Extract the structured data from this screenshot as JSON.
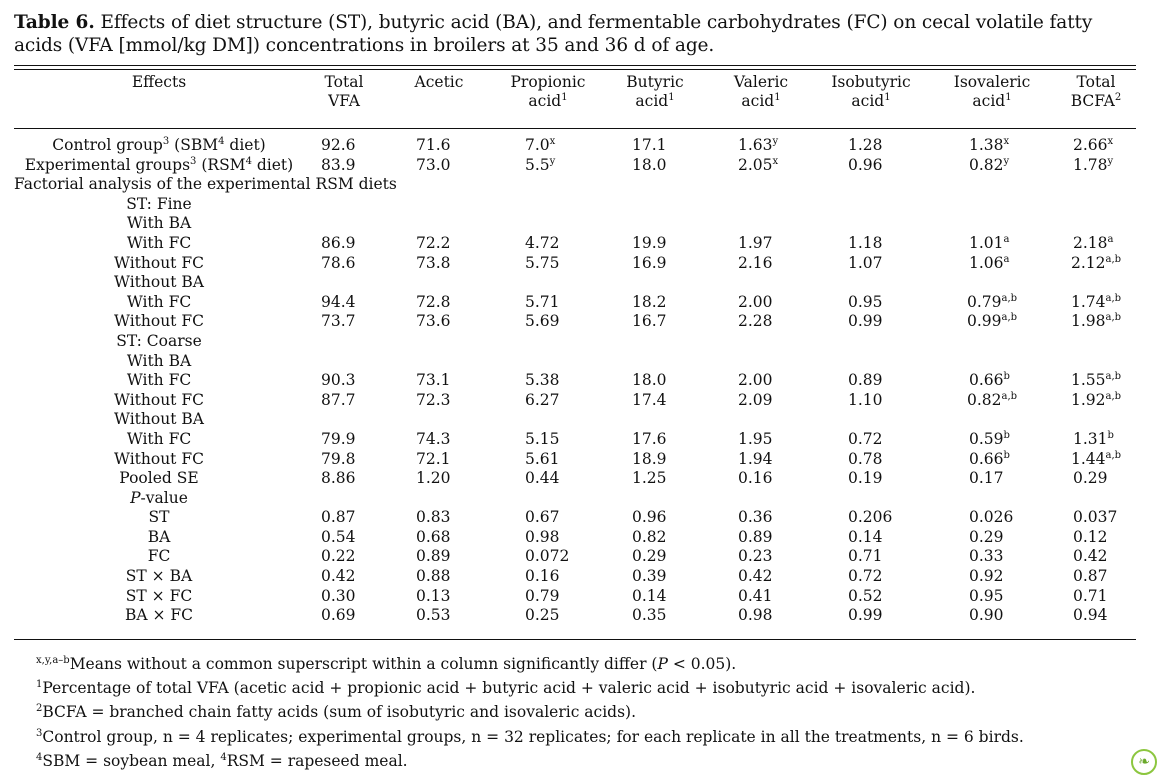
{
  "caption": {
    "label": "Table 6.",
    "text": " Effects of diet structure (ST), butyric acid (BA), and fermentable carbohydrates (FC) on cecal volatile fatty acids (VFA [mmol/kg DM]) concentrations in broilers at 35 and 36 d of age."
  },
  "headers": [
    {
      "line1": "Effects",
      "line2": "",
      "sup": ""
    },
    {
      "line1": "Total",
      "line2": "VFA",
      "sup": ""
    },
    {
      "line1": "Acetic",
      "line2": "",
      "sup": ""
    },
    {
      "line1": "Propionic",
      "line2": "acid",
      "sup": "1"
    },
    {
      "line1": "Butyric",
      "line2": "acid",
      "sup": "1"
    },
    {
      "line1": "Valeric",
      "line2": "acid",
      "sup": "1"
    },
    {
      "line1": "Isobutyric",
      "line2": "acid",
      "sup": "1"
    },
    {
      "line1": "Isovaleric",
      "line2": "acid",
      "sup": "1"
    },
    {
      "line1": "Total",
      "line2": "BCFA",
      "sup": "2"
    }
  ],
  "rows": [
    {
      "label": "Control group",
      "label_sup": "3",
      "label_rest": " (SBM",
      "label_sup2": "4",
      "label_end": " diet)",
      "vals": [
        "92.6",
        "71.6",
        "7.0",
        "17.1",
        "1.63",
        "1.28",
        "1.38",
        "2.66"
      ],
      "sups": [
        "",
        "",
        "x",
        "",
        "y",
        "",
        "x",
        "x"
      ]
    },
    {
      "label": "Experimental groups",
      "label_sup": "3",
      "label_rest": " (RSM",
      "label_sup2": "4",
      "label_end": " diet)",
      "vals": [
        "83.9",
        "73.0",
        "5.5",
        "18.0",
        "2.05",
        "0.96",
        "0.82",
        "1.78"
      ],
      "sups": [
        "",
        "",
        "y",
        "",
        "x",
        "",
        "y",
        "y"
      ]
    },
    {
      "label": "Factorial analysis of the experimental RSM diets",
      "align": "left",
      "vals": []
    },
    {
      "label": "ST: Fine",
      "vals": []
    },
    {
      "label": "With BA",
      "vals": []
    },
    {
      "label": "With FC",
      "vals": [
        "86.9",
        "72.2",
        "4.72",
        "19.9",
        "1.97",
        "1.18",
        "1.01",
        "2.18"
      ],
      "sups": [
        "",
        "",
        "",
        "",
        "",
        "",
        "a",
        "a"
      ]
    },
    {
      "label": "Without FC",
      "vals": [
        "78.6",
        "73.8",
        "5.75",
        "16.9",
        "2.16",
        "1.07",
        "1.06",
        "2.12"
      ],
      "sups": [
        "",
        "",
        "",
        "",
        "",
        "",
        "a",
        "a,b"
      ]
    },
    {
      "label": "Without BA",
      "vals": []
    },
    {
      "label": "With FC",
      "vals": [
        "94.4",
        "72.8",
        "5.71",
        "18.2",
        "2.00",
        "0.95",
        "0.79",
        "1.74"
      ],
      "sups": [
        "",
        "",
        "",
        "",
        "",
        "",
        "a,b",
        "a,b"
      ]
    },
    {
      "label": "Without FC",
      "vals": [
        "73.7",
        "73.6",
        "5.69",
        "16.7",
        "2.28",
        "0.99",
        "0.99",
        "1.98"
      ],
      "sups": [
        "",
        "",
        "",
        "",
        "",
        "",
        "a,b",
        "a,b"
      ]
    },
    {
      "label": "ST: Coarse",
      "vals": []
    },
    {
      "label": "With BA",
      "vals": []
    },
    {
      "label": "With FC",
      "vals": [
        "90.3",
        "73.1",
        "5.38",
        "18.0",
        "2.00",
        "0.89",
        "0.66",
        "1.55"
      ],
      "sups": [
        "",
        "",
        "",
        "",
        "",
        "",
        "b",
        "a,b"
      ]
    },
    {
      "label": "Without FC",
      "vals": [
        "87.7",
        "72.3",
        "6.27",
        "17.4",
        "2.09",
        "1.10",
        "0.82",
        "1.92"
      ],
      "sups": [
        "",
        "",
        "",
        "",
        "",
        "",
        "a,b",
        "a,b"
      ]
    },
    {
      "label": "Without BA",
      "vals": []
    },
    {
      "label": "With FC",
      "vals": [
        "79.9",
        "74.3",
        "5.15",
        "17.6",
        "1.95",
        "0.72",
        "0.59",
        "1.31"
      ],
      "sups": [
        "",
        "",
        "",
        "",
        "",
        "",
        "b",
        "b"
      ]
    },
    {
      "label": "Without FC",
      "vals": [
        "79.8",
        "72.1",
        "5.61",
        "18.9",
        "1.94",
        "0.78",
        "0.66",
        "1.44"
      ],
      "sups": [
        "",
        "",
        "",
        "",
        "",
        "",
        "b",
        "a,b"
      ]
    },
    {
      "label": "Pooled SE",
      "vals": [
        "8.86",
        "1.20",
        "0.44",
        "1.25",
        "0.16",
        "0.19",
        "0.17",
        "0.29"
      ],
      "sups": [
        "",
        "",
        "",
        "",
        "",
        "",
        "",
        ""
      ]
    },
    {
      "label": "P-value",
      "italic_p": true,
      "vals": []
    },
    {
      "label": "ST",
      "vals": [
        "0.87",
        "0.83",
        "0.67",
        "0.96",
        "0.36",
        "0.206",
        "0.026",
        "0.037"
      ],
      "sups": [
        "",
        "",
        "",
        "",
        "",
        "",
        "",
        ""
      ]
    },
    {
      "label": "BA",
      "vals": [
        "0.54",
        "0.68",
        "0.98",
        "0.82",
        "0.89",
        "0.14",
        "0.29",
        "0.12"
      ],
      "sups": [
        "",
        "",
        "",
        "",
        "",
        "",
        "",
        ""
      ]
    },
    {
      "label": "FC",
      "vals": [
        "0.22",
        "0.89",
        "0.072",
        "0.29",
        "0.23",
        "0.71",
        "0.33",
        "0.42"
      ],
      "sups": [
        "",
        "",
        "",
        "",
        "",
        "",
        "",
        ""
      ]
    },
    {
      "label": "ST × BA",
      "vals": [
        "0.42",
        "0.88",
        "0.16",
        "0.39",
        "0.42",
        "0.72",
        "0.92",
        "0.87"
      ],
      "sups": [
        "",
        "",
        "",
        "",
        "",
        "",
        "",
        ""
      ]
    },
    {
      "label": "ST × FC",
      "vals": [
        "0.30",
        "0.13",
        "0.79",
        "0.14",
        "0.41",
        "0.52",
        "0.95",
        "0.71"
      ],
      "sups": [
        "",
        "",
        "",
        "",
        "",
        "",
        "",
        ""
      ]
    },
    {
      "label": "BA × FC",
      "vals": [
        "0.69",
        "0.53",
        "0.25",
        "0.35",
        "0.98",
        "0.99",
        "0.90",
        "0.94"
      ],
      "sups": [
        "",
        "",
        "",
        "",
        "",
        "",
        "",
        ""
      ]
    }
  ],
  "notes": [
    {
      "sup": "x,y,a–b",
      "text": "Means without a common superscript within a column significantly differ (",
      "italic": "P",
      "text2": " < 0.05)."
    },
    {
      "sup": "1",
      "text": "Percentage of total VFA (acetic acid + propionic acid + butyric acid + valeric acid + isobutyric acid + isovaleric acid).",
      "italic": "",
      "text2": ""
    },
    {
      "sup": "2",
      "text": "BCFA = branched chain fatty acids (sum of isobutyric and isovaleric acids).",
      "italic": "",
      "text2": ""
    },
    {
      "sup": "3",
      "text": "Control group, n = 4 replicates; experimental groups, n = 32 replicates; for each replicate in all the treatments, n = 6 birds.",
      "italic": "",
      "text2": ""
    },
    {
      "sup": "4",
      "text": "SBM = soybean meal, ",
      "sup2": "4",
      "text3": "RSM = rapeseed meal.",
      "italic": "",
      "text2": ""
    }
  ],
  "badge_icon": "leaf-icon",
  "colors": {
    "text": "#111111",
    "badge": "#8cc63f"
  }
}
